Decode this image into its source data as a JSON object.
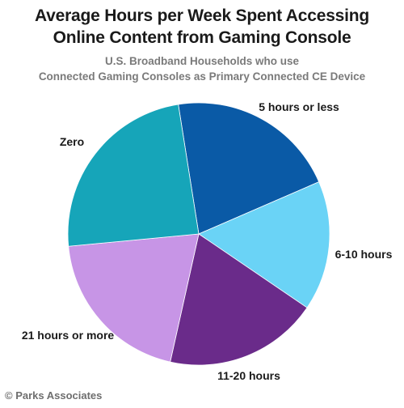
{
  "chart_data": {
    "type": "pie",
    "title_lines": [
      "Average Hours per Week Spent Accessing",
      "Online Content from Gaming Console"
    ],
    "subtitle_lines": [
      "U.S. Broadband Households who use",
      "Connected Gaming Consoles as Primary Connected CE Device"
    ],
    "categories": [
      "5 hours or less",
      "6-10 hours",
      "11-20 hours",
      "21 hours or more",
      "Zero"
    ],
    "values": [
      21,
      16,
      19,
      20,
      24
    ],
    "colors": [
      "#0a5aa6",
      "#6ad3f6",
      "#6a2b8a",
      "#c795e6",
      "#16a5b9"
    ],
    "start_angle_deg": -9,
    "legend": "none",
    "data_labels": "outside"
  },
  "source": "© Parks Associates"
}
